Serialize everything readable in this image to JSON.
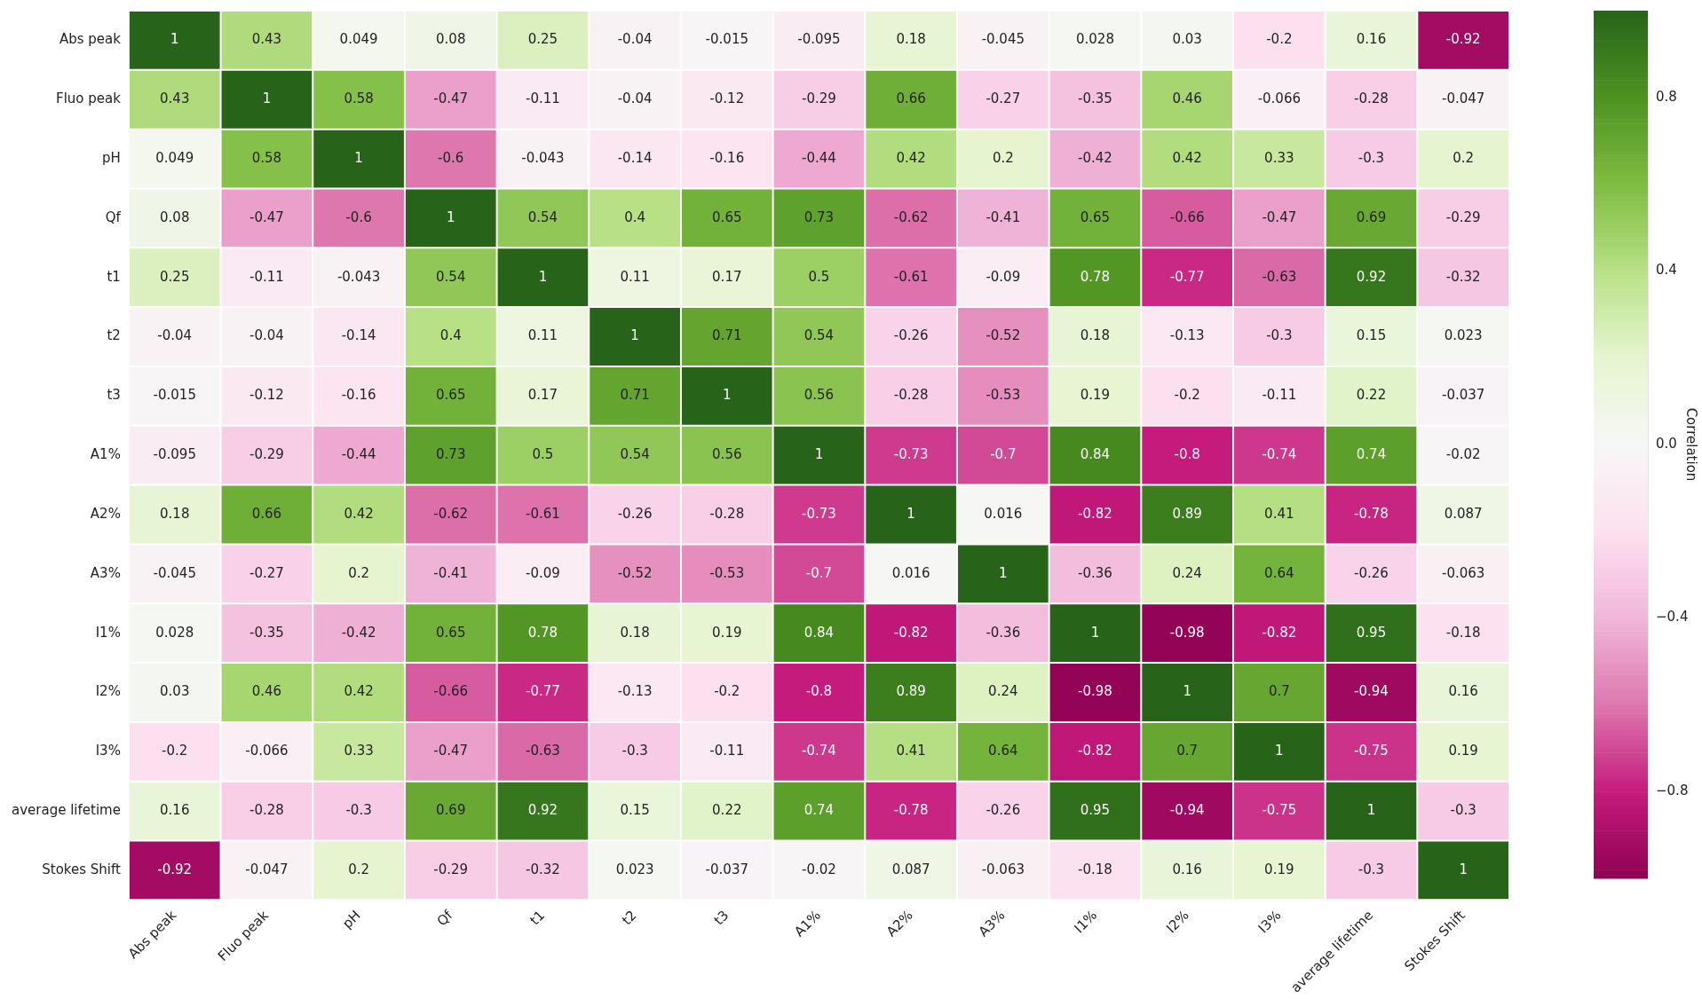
{
  "chart_data": {
    "type": "heatmap",
    "clabel": "Correlation",
    "data_labels": true,
    "legend": false,
    "grid": false,
    "categories": [
      "Abs peak",
      "Fluo peak",
      "pH",
      "Qf",
      "t1",
      "t2",
      "t3",
      "A1%",
      "A2%",
      "A3%",
      "I1%",
      "I2%",
      "I3%",
      "average lifetime",
      "Stokes Shift"
    ],
    "y_categories": [
      "Abs peak",
      "Fluo peak",
      "pH",
      "Qf",
      "t1",
      "t2",
      "t3",
      "A1%",
      "A2%",
      "A3%",
      "I1%",
      "I2%",
      "I3%",
      "average lifetime",
      "Stokes Shift"
    ],
    "cells": [
      [
        1,
        0.43,
        0.049,
        0.08,
        0.25,
        -0.04,
        -0.015,
        -0.095,
        0.18,
        -0.045,
        0.028,
        0.03,
        -0.2,
        0.16,
        -0.92
      ],
      [
        0.43,
        1,
        0.58,
        -0.47,
        -0.11,
        -0.04,
        -0.12,
        -0.29,
        0.66,
        -0.27,
        -0.35,
        0.46,
        -0.066,
        -0.28,
        -0.047
      ],
      [
        0.049,
        0.58,
        1,
        -0.6,
        -0.043,
        -0.14,
        -0.16,
        -0.44,
        0.42,
        0.2,
        -0.42,
        0.42,
        0.33,
        -0.3,
        0.2
      ],
      [
        0.08,
        -0.47,
        -0.6,
        1,
        0.54,
        0.4,
        0.65,
        0.73,
        -0.62,
        -0.41,
        0.65,
        -0.66,
        -0.47,
        0.69,
        -0.29
      ],
      [
        0.25,
        -0.11,
        -0.043,
        0.54,
        1,
        0.11,
        0.17,
        0.5,
        -0.61,
        -0.09,
        0.78,
        -0.77,
        -0.63,
        0.92,
        -0.32
      ],
      [
        -0.04,
        -0.04,
        -0.14,
        0.4,
        0.11,
        1,
        0.71,
        0.54,
        -0.26,
        -0.52,
        0.18,
        -0.13,
        -0.3,
        0.15,
        0.023
      ],
      [
        -0.015,
        -0.12,
        -0.16,
        0.65,
        0.17,
        0.71,
        1,
        0.56,
        -0.28,
        -0.53,
        0.19,
        -0.2,
        -0.11,
        0.22,
        -0.037
      ],
      [
        -0.095,
        -0.29,
        -0.44,
        0.73,
        0.5,
        0.54,
        0.56,
        1,
        -0.73,
        -0.7,
        0.84,
        -0.8,
        -0.74,
        0.74,
        -0.02
      ],
      [
        0.18,
        0.66,
        0.42,
        -0.62,
        -0.61,
        -0.26,
        -0.28,
        -0.73,
        1,
        0.016,
        -0.82,
        0.89,
        0.41,
        -0.78,
        0.087
      ],
      [
        -0.045,
        -0.27,
        0.2,
        -0.41,
        -0.09,
        -0.52,
        -0.53,
        -0.7,
        0.016,
        1,
        -0.36,
        0.24,
        0.64,
        -0.26,
        -0.063
      ],
      [
        0.028,
        -0.35,
        -0.42,
        0.65,
        0.78,
        0.18,
        0.19,
        0.84,
        -0.82,
        -0.36,
        1,
        -0.98,
        -0.82,
        0.95,
        -0.18
      ],
      [
        0.03,
        0.46,
        0.42,
        -0.66,
        -0.77,
        -0.13,
        -0.2,
        -0.8,
        0.89,
        0.24,
        -0.98,
        1,
        0.7,
        -0.94,
        0.16
      ],
      [
        -0.2,
        -0.066,
        0.33,
        -0.47,
        -0.63,
        -0.3,
        -0.11,
        -0.74,
        0.41,
        0.64,
        -0.82,
        0.7,
        1,
        -0.75,
        0.19
      ],
      [
        0.16,
        -0.28,
        -0.3,
        0.69,
        0.92,
        0.15,
        0.22,
        0.74,
        -0.78,
        -0.26,
        0.95,
        -0.94,
        -0.75,
        1,
        -0.3
      ],
      [
        -0.92,
        -0.047,
        0.2,
        -0.29,
        -0.32,
        0.023,
        -0.037,
        -0.02,
        0.087,
        -0.063,
        -0.18,
        0.16,
        0.19,
        -0.3,
        1
      ]
    ],
    "clim": [
      -1,
      1
    ],
    "cticks": [
      {
        "value": -0.8,
        "label": "−0.8"
      },
      {
        "value": -0.4,
        "label": "−0.4"
      },
      {
        "value": 0,
        "label": "0.0"
      },
      0.4,
      0.8
    ]
  }
}
